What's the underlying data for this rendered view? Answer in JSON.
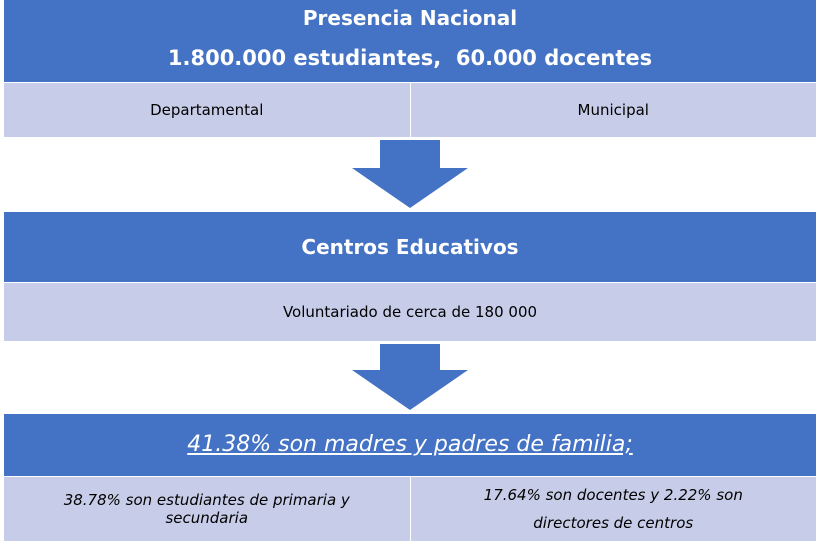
{
  "blocks": [
    {
      "title": "Presencia Nacional",
      "subtitle": "1.800.000 estudiantes,  60.000 docentes",
      "cells": [
        "Departamental",
        "Municipal"
      ]
    },
    {
      "title": "Centros Educativos",
      "cells": [
        "Voluntariado de cerca de 180 000"
      ]
    },
    {
      "title": "41.38% son madres y padres de familia;",
      "cells": [
        "38.78% son estudiantes de primaria y secundaria",
        "17.64% son docentes y 2.22% son directores de centros"
      ]
    }
  ]
}
